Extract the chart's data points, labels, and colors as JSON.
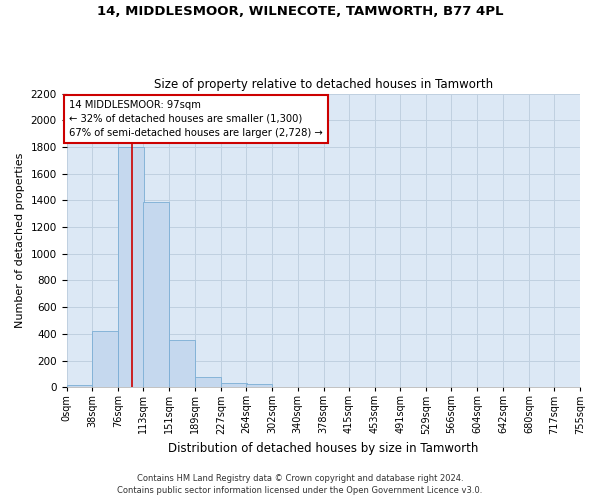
{
  "title1": "14, MIDDLESMOOR, WILNECOTE, TAMWORTH, B77 4PL",
  "title2": "Size of property relative to detached houses in Tamworth",
  "xlabel": "Distribution of detached houses by size in Tamworth",
  "ylabel": "Number of detached properties",
  "bin_labels": [
    "0sqm",
    "38sqm",
    "76sqm",
    "113sqm",
    "151sqm",
    "189sqm",
    "227sqm",
    "264sqm",
    "302sqm",
    "340sqm",
    "378sqm",
    "415sqm",
    "453sqm",
    "491sqm",
    "529sqm",
    "566sqm",
    "604sqm",
    "642sqm",
    "680sqm",
    "717sqm",
    "755sqm"
  ],
  "bin_edges": [
    0,
    38,
    76,
    113,
    151,
    189,
    227,
    264,
    302,
    340,
    378,
    415,
    453,
    491,
    529,
    566,
    604,
    642,
    680,
    717,
    755
  ],
  "bin_width": 38,
  "bar_heights": [
    20,
    420,
    1800,
    1390,
    355,
    80,
    30,
    25,
    0,
    0,
    0,
    0,
    0,
    0,
    0,
    0,
    0,
    0,
    0,
    0
  ],
  "bar_color": "#c5d8ee",
  "bar_edge_color": "#7aadd4",
  "vline_x": 97,
  "vline_color": "#cc0000",
  "annotation_line1": "14 MIDDLESMOOR: 97sqm",
  "annotation_line2": "← 32% of detached houses are smaller (1,300)",
  "annotation_line3": "67% of semi-detached houses are larger (2,728) →",
  "annotation_box_color": "#cc0000",
  "annotation_bg": "#ffffff",
  "ylim": [
    0,
    2200
  ],
  "yticks": [
    0,
    200,
    400,
    600,
    800,
    1000,
    1200,
    1400,
    1600,
    1800,
    2000,
    2200
  ],
  "grid_color": "#c0d0e0",
  "bg_color": "#dce8f5",
  "footer1": "Contains HM Land Registry data © Crown copyright and database right 2024.",
  "footer2": "Contains public sector information licensed under the Open Government Licence v3.0."
}
